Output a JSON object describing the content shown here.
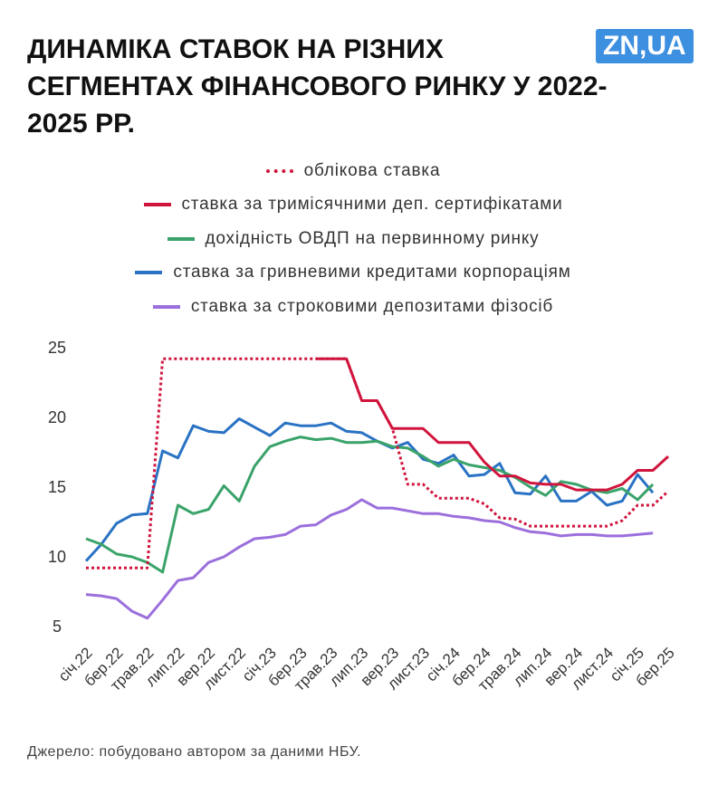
{
  "chart_data": {
    "type": "line",
    "title": "ДИНАМІКА СТАВОК НА РІЗНИХ СЕГМЕНТАХ ФІНАНСОВОГО РИНКУ У 2022-2025 РР.",
    "logo": "ZN,UA",
    "source": "Джерело: побудовано автором за даними НБУ.",
    "categories": [
      "січ.22",
      null,
      "бер.22",
      null,
      "трав.22",
      null,
      "лип.22",
      null,
      "вер.22",
      null,
      "лист.22",
      null,
      "січ.23",
      null,
      "бер.23",
      null,
      "трав.23",
      null,
      "лип.23",
      null,
      "вер.23",
      null,
      "лист.23",
      null,
      "січ.24",
      null,
      "бер.24",
      null,
      "трав.24",
      null,
      "лип.24",
      null,
      "вер.24",
      null,
      "лист.24",
      null,
      "січ.25",
      null,
      "бер.25"
    ],
    "ylim": [
      5,
      25
    ],
    "yticks": [
      5,
      10,
      15,
      20,
      25
    ],
    "grid": false,
    "series": [
      {
        "name": "облікова ставка",
        "color": "#d0143c",
        "style": "dotted",
        "values": [
          9.2,
          9.2,
          9.2,
          9.2,
          9.2,
          24.2,
          24.2,
          24.2,
          24.2,
          24.2,
          24.2,
          24.2,
          24.2,
          24.2,
          24.2,
          24.2,
          24.2,
          24.2,
          21.2,
          21.2,
          19.2,
          15.2,
          15.2,
          14.2,
          14.2,
          14.2,
          13.8,
          12.8,
          12.7,
          12.2,
          12.2,
          12.2,
          12.2,
          12.2,
          12.2,
          12.6,
          13.7,
          13.7,
          14.7
        ]
      },
      {
        "name": "ставка за тримісячними деп. сертифікатами",
        "color": "#d0143c",
        "style": "solid",
        "values": [
          null,
          null,
          null,
          null,
          null,
          null,
          null,
          null,
          null,
          null,
          null,
          null,
          null,
          null,
          null,
          24.2,
          24.2,
          24.2,
          21.2,
          21.2,
          19.2,
          19.2,
          19.2,
          18.2,
          18.2,
          18.2,
          16.8,
          15.8,
          15.8,
          15.3,
          15.2,
          15.2,
          14.8,
          14.8,
          14.8,
          15.2,
          16.2,
          16.2,
          17.2
        ]
      },
      {
        "name": "дохідність ОВДП на первинному ринку",
        "color": "#3aa36a",
        "style": "solid",
        "values": [
          11.3,
          10.9,
          10.2,
          10.0,
          9.6,
          8.9,
          13.7,
          13.1,
          13.4,
          15.1,
          14.0,
          16.5,
          17.9,
          18.3,
          18.6,
          18.4,
          18.5,
          18.2,
          18.2,
          18.3,
          17.9,
          17.8,
          17.2,
          16.5,
          17.0,
          16.6,
          16.4,
          16.2,
          15.7,
          15.0,
          14.4,
          15.4,
          15.2,
          14.8,
          14.6,
          14.9,
          14.1,
          15.2,
          null
        ]
      },
      {
        "name": "ставка за гривневими кредитами корпораціям",
        "color": "#2a72c4",
        "style": "solid",
        "values": [
          9.7,
          10.9,
          12.4,
          13.0,
          13.1,
          17.6,
          17.1,
          19.4,
          19.0,
          18.9,
          19.9,
          19.3,
          18.7,
          19.6,
          19.4,
          19.4,
          19.6,
          19.0,
          18.9,
          18.3,
          17.8,
          18.2,
          17.0,
          16.7,
          17.3,
          15.8,
          15.9,
          16.7,
          14.6,
          14.5,
          15.8,
          14.0,
          14.0,
          14.7,
          13.7,
          14.0,
          15.9,
          14.6,
          null
        ]
      },
      {
        "name": "ставка за строковими депозитами фізосіб",
        "color": "#9b6fdc",
        "style": "solid",
        "values": [
          7.3,
          7.2,
          7.0,
          6.1,
          5.6,
          6.9,
          8.3,
          8.5,
          9.6,
          10.0,
          10.7,
          11.3,
          11.4,
          11.6,
          12.2,
          12.3,
          13.0,
          13.4,
          14.1,
          13.5,
          13.5,
          13.3,
          13.1,
          13.1,
          12.9,
          12.8,
          12.6,
          12.5,
          12.1,
          11.8,
          11.7,
          11.5,
          11.6,
          11.6,
          11.5,
          11.5,
          11.6,
          11.7,
          null
        ]
      }
    ]
  }
}
